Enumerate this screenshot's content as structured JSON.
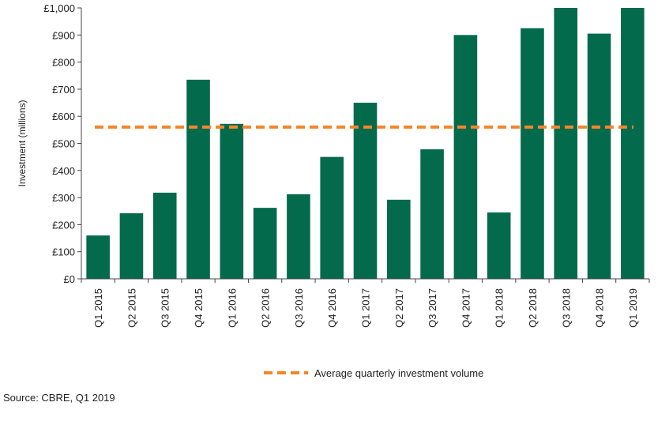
{
  "chart_data": {
    "type": "bar",
    "categories": [
      "Q1 2015",
      "Q2 2015",
      "Q3 2015",
      "Q4 2015",
      "Q1 2016",
      "Q2 2016",
      "Q3 2016",
      "Q4 2016",
      "Q1 2017",
      "Q2 2017",
      "Q3 2017",
      "Q4 2017",
      "Q1 2018",
      "Q2 2018",
      "Q3 2018",
      "Q4 2018",
      "Q1 2019"
    ],
    "series": [
      {
        "values": [
          160,
          242,
          318,
          735,
          572,
          262,
          312,
          450,
          650,
          292,
          478,
          900,
          245,
          925,
          1000,
          905,
          1000
        ],
        "color": "#046a4c"
      }
    ],
    "average_line": {
      "name": "Average quarterly investment volume",
      "value": 560,
      "color": "#f4862a",
      "style": "dashed"
    },
    "ylabel": "Investment (millions)",
    "xlabel": "",
    "ylim": [
      0,
      1000
    ],
    "yticks": [
      0,
      100,
      200,
      300,
      400,
      500,
      600,
      700,
      800,
      900,
      1000
    ],
    "ytick_labels": [
      "£0",
      "£100",
      "£200",
      "£300",
      "£400",
      "£500",
      "£600",
      "£700",
      "£800",
      "£900",
      "£1,000"
    ],
    "grid": false,
    "legend": "bottom-center"
  },
  "source": "Source: CBRE, Q1 2019"
}
